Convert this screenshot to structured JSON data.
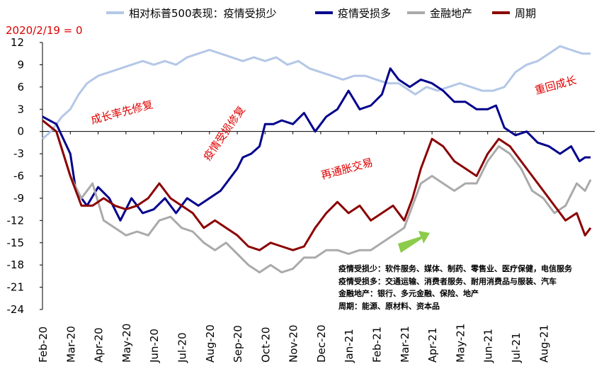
{
  "chart_data": {
    "type": "line",
    "subtitle": "2020/2/19 = 0",
    "ylim": [
      -24,
      12
    ],
    "yticks": [
      12,
      9,
      6,
      3,
      0,
      -3,
      -6,
      -9,
      -12,
      -15,
      -18,
      -21,
      -24
    ],
    "x_ticks": [
      "Feb-20",
      "Mar-20",
      "Apr-20",
      "May-20",
      "Jun-20",
      "Jul-20",
      "Aug-20",
      "Sep-20",
      "Oct-20",
      "Nov-20",
      "Dec-20",
      "Jan-21",
      "Feb-21",
      "Mar-21",
      "Apr-21",
      "May-21",
      "Jun-21",
      "Jul-21",
      "Aug-21"
    ],
    "colors": {
      "light_blue": "#b4c7e7",
      "navy": "#00008b",
      "gray": "#aaaaaa",
      "dark_red": "#8b0000",
      "arrow": "#8ccc4a",
      "annotation": "#e00000"
    },
    "series": [
      {
        "name": "相对标普500表现：疫情受损少",
        "color": "#b4c7e7",
        "values": [
          [
            0,
            -1
          ],
          [
            0.3,
            0
          ],
          [
            0.7,
            2
          ],
          [
            1,
            3
          ],
          [
            1.3,
            5
          ],
          [
            1.6,
            6.5
          ],
          [
            2,
            7.5
          ],
          [
            2.4,
            8
          ],
          [
            2.8,
            8.5
          ],
          [
            3.2,
            9
          ],
          [
            3.6,
            9.5
          ],
          [
            4,
            9
          ],
          [
            4.4,
            9.5
          ],
          [
            4.8,
            9
          ],
          [
            5.2,
            10
          ],
          [
            5.6,
            10.5
          ],
          [
            6,
            11
          ],
          [
            6.4,
            10.5
          ],
          [
            6.8,
            10
          ],
          [
            7.2,
            9.5
          ],
          [
            7.6,
            10
          ],
          [
            8,
            9.5
          ],
          [
            8.4,
            10
          ],
          [
            8.8,
            9
          ],
          [
            9.2,
            9.5
          ],
          [
            9.6,
            8.5
          ],
          [
            10,
            8
          ],
          [
            10.4,
            7.5
          ],
          [
            10.8,
            7
          ],
          [
            11.2,
            7.5
          ],
          [
            11.6,
            7.5
          ],
          [
            12,
            7
          ],
          [
            12.4,
            6.5
          ],
          [
            12.8,
            6.5
          ],
          [
            13,
            6
          ],
          [
            13.4,
            5
          ],
          [
            13.8,
            6
          ],
          [
            14.2,
            5.5
          ],
          [
            14.6,
            6
          ],
          [
            15,
            6.5
          ],
          [
            15.4,
            6
          ],
          [
            15.8,
            5.5
          ],
          [
            16.2,
            5.5
          ],
          [
            16.6,
            6
          ],
          [
            17,
            8
          ],
          [
            17.4,
            9
          ],
          [
            17.8,
            9.5
          ],
          [
            18.2,
            10.5
          ],
          [
            18.6,
            11.5
          ],
          [
            19,
            11
          ],
          [
            19.4,
            10.5
          ],
          [
            19.7,
            10.5
          ]
        ]
      },
      {
        "name": "疫情受损多",
        "color": "#00008b",
        "values": [
          [
            0,
            2
          ],
          [
            0.5,
            1
          ],
          [
            1,
            -3
          ],
          [
            1.2,
            -8
          ],
          [
            1.6,
            -10
          ],
          [
            2,
            -7.5
          ],
          [
            2.4,
            -9
          ],
          [
            2.8,
            -12
          ],
          [
            3.2,
            -9
          ],
          [
            3.6,
            -11
          ],
          [
            4,
            -10.5
          ],
          [
            4.4,
            -9
          ],
          [
            4.8,
            -11
          ],
          [
            5.2,
            -9
          ],
          [
            5.6,
            -10
          ],
          [
            6,
            -9
          ],
          [
            6.4,
            -8
          ],
          [
            6.8,
            -6
          ],
          [
            7,
            -5
          ],
          [
            7.2,
            -3.5
          ],
          [
            7.5,
            -3
          ],
          [
            7.8,
            -2
          ],
          [
            8,
            1
          ],
          [
            8.3,
            1
          ],
          [
            8.6,
            1.5
          ],
          [
            9,
            1
          ],
          [
            9.4,
            2.5
          ],
          [
            9.8,
            0
          ],
          [
            10.2,
            2
          ],
          [
            10.6,
            3
          ],
          [
            11,
            5.5
          ],
          [
            11.4,
            3
          ],
          [
            11.8,
            3.5
          ],
          [
            12.2,
            5
          ],
          [
            12.5,
            8.5
          ],
          [
            12.8,
            7
          ],
          [
            13.2,
            6
          ],
          [
            13.6,
            7
          ],
          [
            14,
            6.5
          ],
          [
            14.4,
            5.5
          ],
          [
            14.8,
            4
          ],
          [
            15.2,
            4
          ],
          [
            15.6,
            3
          ],
          [
            16,
            3
          ],
          [
            16.3,
            3.5
          ],
          [
            16.6,
            0.5
          ],
          [
            17,
            -0.5
          ],
          [
            17.4,
            0
          ],
          [
            17.8,
            -1.5
          ],
          [
            18.2,
            -2
          ],
          [
            18.6,
            -3
          ],
          [
            19,
            -2
          ],
          [
            19.3,
            -4
          ],
          [
            19.5,
            -3.5
          ],
          [
            19.7,
            -3.5
          ]
        ]
      },
      {
        "name": "金融地产",
        "color": "#aaaaaa",
        "values": [
          [
            0,
            1.5
          ],
          [
            0.5,
            0
          ],
          [
            1,
            -6
          ],
          [
            1.4,
            -9
          ],
          [
            1.8,
            -7
          ],
          [
            2.2,
            -12
          ],
          [
            2.6,
            -13
          ],
          [
            3,
            -14
          ],
          [
            3.4,
            -13.5
          ],
          [
            3.8,
            -14
          ],
          [
            4.2,
            -12
          ],
          [
            4.6,
            -11.5
          ],
          [
            5,
            -13
          ],
          [
            5.4,
            -13.5
          ],
          [
            5.8,
            -15
          ],
          [
            6.2,
            -16
          ],
          [
            6.6,
            -15
          ],
          [
            7,
            -16.5
          ],
          [
            7.4,
            -18
          ],
          [
            7.8,
            -19
          ],
          [
            8.2,
            -18
          ],
          [
            8.6,
            -19
          ],
          [
            9,
            -18.5
          ],
          [
            9.4,
            -17
          ],
          [
            9.8,
            -17
          ],
          [
            10.2,
            -16
          ],
          [
            10.6,
            -16
          ],
          [
            11,
            -16.5
          ],
          [
            11.4,
            -16
          ],
          [
            11.8,
            -16
          ],
          [
            12.2,
            -15
          ],
          [
            12.6,
            -14
          ],
          [
            13,
            -13
          ],
          [
            13.3,
            -10
          ],
          [
            13.6,
            -7
          ],
          [
            14,
            -6
          ],
          [
            14.4,
            -7
          ],
          [
            14.8,
            -8
          ],
          [
            15.2,
            -7
          ],
          [
            15.6,
            -7
          ],
          [
            16,
            -4
          ],
          [
            16.4,
            -2
          ],
          [
            16.8,
            -3
          ],
          [
            17.2,
            -5
          ],
          [
            17.6,
            -8
          ],
          [
            18,
            -9
          ],
          [
            18.4,
            -11
          ],
          [
            18.8,
            -10
          ],
          [
            19.2,
            -7
          ],
          [
            19.5,
            -8
          ],
          [
            19.7,
            -6.5
          ]
        ]
      },
      {
        "name": "周期",
        "color": "#8b0000",
        "values": [
          [
            0,
            1.5
          ],
          [
            0.5,
            0
          ],
          [
            1,
            -6
          ],
          [
            1.4,
            -10
          ],
          [
            1.8,
            -10
          ],
          [
            2.2,
            -9
          ],
          [
            2.6,
            -10
          ],
          [
            3,
            -10.5
          ],
          [
            3.4,
            -10
          ],
          [
            3.8,
            -9
          ],
          [
            4.2,
            -7
          ],
          [
            4.6,
            -9
          ],
          [
            5,
            -10
          ],
          [
            5.4,
            -11
          ],
          [
            5.8,
            -13
          ],
          [
            6.2,
            -12
          ],
          [
            6.6,
            -13
          ],
          [
            7,
            -14
          ],
          [
            7.4,
            -15.5
          ],
          [
            7.8,
            -16
          ],
          [
            8.2,
            -15
          ],
          [
            8.6,
            -15.5
          ],
          [
            9,
            -16
          ],
          [
            9.4,
            -15.5
          ],
          [
            9.8,
            -13
          ],
          [
            10.2,
            -11
          ],
          [
            10.6,
            -9.5
          ],
          [
            11,
            -11
          ],
          [
            11.4,
            -10
          ],
          [
            11.8,
            -12
          ],
          [
            12.2,
            -11
          ],
          [
            12.6,
            -10
          ],
          [
            13,
            -12
          ],
          [
            13.3,
            -9
          ],
          [
            13.6,
            -5
          ],
          [
            14,
            -1
          ],
          [
            14.4,
            -2
          ],
          [
            14.8,
            -4
          ],
          [
            15.2,
            -5
          ],
          [
            15.6,
            -6
          ],
          [
            16,
            -3
          ],
          [
            16.4,
            -1
          ],
          [
            16.8,
            -2
          ],
          [
            17.2,
            -4
          ],
          [
            17.6,
            -6
          ],
          [
            18,
            -8
          ],
          [
            18.4,
            -10
          ],
          [
            18.8,
            -12
          ],
          [
            19.2,
            -11
          ],
          [
            19.5,
            -14
          ],
          [
            19.7,
            -13
          ]
        ]
      }
    ],
    "annotations": [
      {
        "text": "成长率先修复",
        "rotate": -15
      },
      {
        "text": "疫情受损修复",
        "rotate": -55
      },
      {
        "text": "再通胀交易",
        "rotate": -15
      },
      {
        "text": "重回成长",
        "rotate": -15
      }
    ],
    "notes": [
      "疫情受损少：软件服务、媒体、制药、零售业、医疗保健，电信服务",
      "疫情受损多：交通运输、消费者服务、耐用消费品与服装、汽车",
      "金融地产：银行、多元金融、保险、地产",
      "周期：能源、原材料、资本品"
    ]
  }
}
